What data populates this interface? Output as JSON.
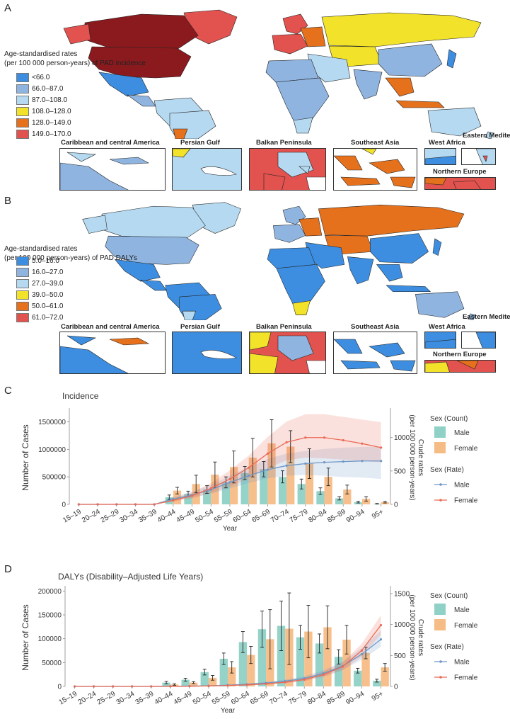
{
  "panels": {
    "A": {
      "letter": "A",
      "legend_title_line1": "Age-standardised rates",
      "legend_title_line2": "(per 100 000 person-years) of PAD incidence",
      "legend": [
        {
          "label": "<66.0",
          "color": "#3d8ee0"
        },
        {
          "label": "66.0–87.0",
          "color": "#8fb4e0"
        },
        {
          "label": "87.0–108.0",
          "color": "#b5d9f0"
        },
        {
          "label": "108.0–128.0",
          "color": "#f2e22a"
        },
        {
          "label": "128.0–149.0",
          "color": "#e6711c"
        },
        {
          "label": "149.0–170.0",
          "color": "#e2524f"
        }
      ],
      "insets": [
        "Caribbean and central America",
        "Persian Gulf",
        "Balkan Peninsula",
        "Southeast Asia",
        "West Africa",
        "Eastern Mediterranean",
        "Northern Europe"
      ]
    },
    "B": {
      "letter": "B",
      "legend_title_line1": "Age-standardised rates",
      "legend_title_line2": "(per 100 000 person-years) of PAD DALYs",
      "legend": [
        {
          "label": "5.0–16.0",
          "color": "#3d8ee0"
        },
        {
          "label": "16.0–27.0",
          "color": "#8fb4e0"
        },
        {
          "label": "27.0–39.0",
          "color": "#b5d9f0"
        },
        {
          "label": "39.0–50.0",
          "color": "#f2e22a"
        },
        {
          "label": "50.0–61.0",
          "color": "#e6711c"
        },
        {
          "label": "61.0–72.0",
          "color": "#e2524f"
        }
      ],
      "insets": [
        "Caribbean and central America",
        "Persian Gulf",
        "Balkan Peninsula",
        "Southeast Asia",
        "West Africa",
        "Eastern Mediterranean",
        "Northern Europe"
      ]
    },
    "C": {
      "letter": "C"
    },
    "D": {
      "letter": "D"
    }
  },
  "colors": {
    "male_bar": "#8fd1c6",
    "female_bar": "#f5bc85",
    "male_line": "#6f97c6",
    "female_line": "#ea6a56",
    "dark_red": "#8a1a1e"
  },
  "chart_data": [
    {
      "type": "bar",
      "title": "Incidence",
      "xlabel": "Year",
      "ylabel": "Number of Cases",
      "y2label_line1": "Crude rates",
      "y2label_line2": "(per 100 000 person-years)",
      "ylim": [
        0,
        1700000
      ],
      "y2lim": [
        0,
        1400
      ],
      "yticks": [
        "0",
        "500000",
        "1000000",
        "1500000"
      ],
      "ytick_values": [
        0,
        500000,
        1000000,
        1500000
      ],
      "y2ticks": [
        "0",
        "500",
        "1000"
      ],
      "y2tick_values": [
        0,
        500,
        1000
      ],
      "categories": [
        "15–19",
        "20–24",
        "25–29",
        "30–34",
        "35–39",
        "40–44",
        "45–49",
        "50–54",
        "55–59",
        "60–64",
        "65–69",
        "70–74",
        "75–79",
        "80–84",
        "85–89",
        "90–94",
        "95+"
      ],
      "legend_count_title": "Sex (Count)",
      "legend_rate_title": "Sex (Rate)",
      "series": [
        {
          "name": "Male",
          "kind": "count",
          "values": [
            0,
            0,
            0,
            0,
            0,
            130000,
            190000,
            270000,
            400000,
            570000,
            640000,
            500000,
            370000,
            240000,
            110000,
            40000,
            10000
          ],
          "err": [
            0,
            0,
            0,
            0,
            0,
            40000,
            50000,
            70000,
            100000,
            120000,
            140000,
            110000,
            90000,
            60000,
            30000,
            15000,
            5000
          ]
        },
        {
          "name": "Female",
          "kind": "count",
          "values": [
            0,
            0,
            0,
            0,
            0,
            250000,
            370000,
            540000,
            680000,
            850000,
            1110000,
            1050000,
            740000,
            500000,
            270000,
            100000,
            40000
          ],
          "err": [
            0,
            0,
            0,
            0,
            0,
            60000,
            160000,
            230000,
            290000,
            350000,
            430000,
            290000,
            270000,
            160000,
            80000,
            40000,
            15000
          ]
        },
        {
          "name": "Male",
          "kind": "rate",
          "values": [
            0,
            0,
            0,
            0,
            0,
            80,
            140,
            220,
            330,
            430,
            520,
            580,
            610,
            630,
            640,
            650,
            650
          ],
          "band_low": [
            0,
            0,
            0,
            0,
            0,
            60,
            100,
            160,
            240,
            320,
            390,
            430,
            440,
            430,
            410,
            400,
            380
          ],
          "band_high": [
            0,
            0,
            0,
            0,
            0,
            110,
            190,
            290,
            430,
            560,
            680,
            760,
            800,
            830,
            850,
            860,
            860
          ]
        },
        {
          "name": "Female",
          "kind": "rate",
          "values": [
            0,
            0,
            0,
            0,
            0,
            60,
            130,
            240,
            380,
            550,
            760,
            930,
            1000,
            1000,
            960,
            910,
            850
          ],
          "band_low": [
            0,
            0,
            0,
            0,
            0,
            40,
            90,
            170,
            270,
            390,
            540,
            660,
            700,
            690,
            670,
            650,
            630
          ],
          "band_high": [
            0,
            0,
            0,
            0,
            0,
            90,
            180,
            320,
            510,
            730,
            1010,
            1240,
            1350,
            1350,
            1310,
            1270,
            1230
          ]
        }
      ]
    },
    {
      "type": "bar",
      "title": "DALYs (Disability–Adjusted Life Years)",
      "xlabel": "Year",
      "ylabel": "Number of Cases",
      "y2label_line1": "Crude rates",
      "y2label_line2": "(per 100 000 person-years)",
      "ylim": [
        0,
        205000
      ],
      "y2lim": [
        0,
        1580
      ],
      "yticks": [
        "0",
        "50000",
        "100000",
        "150000",
        "200000"
      ],
      "ytick_values": [
        0,
        50000,
        100000,
        150000,
        200000
      ],
      "y2ticks": [
        "0",
        "500",
        "1000",
        "1500"
      ],
      "y2tick_values": [
        0,
        500,
        1000,
        1500
      ],
      "categories": [
        "15–19",
        "20–24",
        "25–29",
        "30–34",
        "35–39",
        "40–44",
        "45–49",
        "50–54",
        "55–59",
        "60–64",
        "65–69",
        "70–74",
        "75–79",
        "80–84",
        "85–89",
        "90–94",
        "95+"
      ],
      "legend_count_title": "Sex (Count)",
      "legend_rate_title": "Sex (Rate)",
      "series": [
        {
          "name": "Male",
          "kind": "count",
          "values": [
            0,
            0,
            0,
            0,
            0,
            8000,
            14000,
            30000,
            58000,
            93000,
            120000,
            127000,
            103000,
            90000,
            62000,
            33000,
            12000
          ],
          "err": [
            0,
            0,
            0,
            0,
            0,
            2500,
            3000,
            6000,
            12000,
            22000,
            38000,
            52000,
            25000,
            20000,
            15000,
            5000,
            3000
          ]
        },
        {
          "name": "Female",
          "kind": "count",
          "values": [
            0,
            0,
            0,
            0,
            0,
            4000,
            8000,
            18000,
            40000,
            66000,
            99000,
            121000,
            115000,
            124000,
            98000,
            70000,
            40000
          ],
          "err": [
            0,
            0,
            0,
            0,
            0,
            1500,
            2000,
            5000,
            12000,
            18000,
            62000,
            75000,
            55000,
            45000,
            30000,
            12000,
            8000
          ]
        },
        {
          "name": "Male",
          "kind": "rate",
          "values": [
            0,
            0,
            0,
            0,
            0,
            2,
            5,
            10,
            20,
            35,
            55,
            85,
            130,
            210,
            330,
            520,
            760
          ],
          "band_low": [
            0,
            0,
            0,
            0,
            0,
            1,
            3,
            7,
            14,
            25,
            40,
            65,
            100,
            165,
            270,
            430,
            640
          ],
          "band_high": [
            0,
            0,
            0,
            0,
            0,
            3,
            7,
            14,
            27,
            46,
            72,
            110,
            165,
            260,
            400,
            620,
            900
          ]
        },
        {
          "name": "Female",
          "kind": "rate",
          "values": [
            0,
            0,
            0,
            0,
            0,
            1,
            3,
            7,
            14,
            25,
            42,
            68,
            110,
            190,
            320,
            580,
            990
          ],
          "band_low": [
            0,
            0,
            0,
            0,
            0,
            1,
            2,
            5,
            10,
            18,
            30,
            50,
            85,
            150,
            260,
            480,
            840
          ],
          "band_high": [
            0,
            0,
            0,
            0,
            0,
            2,
            4,
            9,
            18,
            32,
            55,
            88,
            140,
            240,
            390,
            690,
            1150
          ]
        }
      ]
    }
  ]
}
